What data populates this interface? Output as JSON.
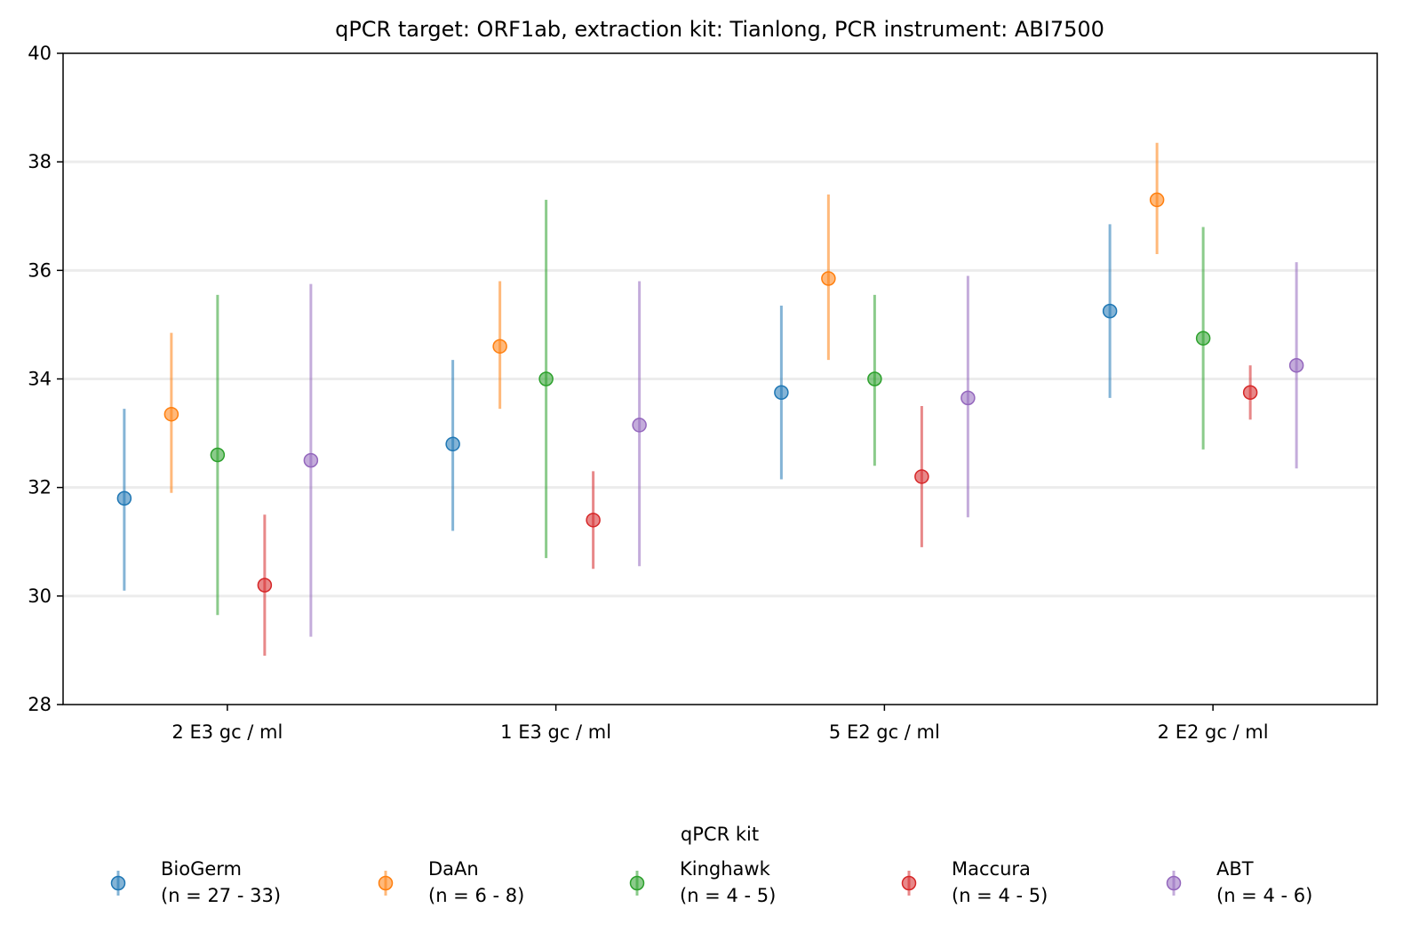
{
  "chart_data": {
    "type": "scatter",
    "subtype": "errorbar",
    "title": "qPCR target: ORF1ab, extraction kit: Tianlong, PCR instrument: ABI7500",
    "xlabel": "",
    "ylabel": "",
    "ylim": [
      28,
      40
    ],
    "yticks": [
      28,
      30,
      32,
      34,
      36,
      38,
      40
    ],
    "grid": "horizontal",
    "categories": [
      "2 E3 gc / ml",
      "1 E3 gc / ml",
      "5 E2 gc / ml",
      "2 E2 gc / ml"
    ],
    "legend": {
      "title": "qPCR kit",
      "placement": "bottom-center"
    },
    "series": [
      {
        "name": "BioGerm",
        "label": "(n = 27 - 33)",
        "color": "#1f77b4",
        "values": [
          31.8,
          32.8,
          33.75,
          35.25
        ],
        "lower": [
          30.1,
          31.2,
          32.15,
          33.65
        ],
        "upper": [
          33.45,
          34.35,
          35.35,
          36.85
        ]
      },
      {
        "name": "DaAn",
        "label": "(n = 6 - 8)",
        "color": "#ff7f0e",
        "values": [
          33.35,
          34.6,
          35.85,
          37.3
        ],
        "lower": [
          31.9,
          33.45,
          34.35,
          36.3
        ],
        "upper": [
          34.85,
          35.8,
          37.4,
          38.35
        ]
      },
      {
        "name": "Kinghawk",
        "label": "(n = 4 - 5)",
        "color": "#2ca02c",
        "values": [
          32.6,
          34.0,
          34.0,
          34.75
        ],
        "lower": [
          29.65,
          30.7,
          32.4,
          32.7
        ],
        "upper": [
          35.55,
          37.3,
          35.55,
          36.8
        ]
      },
      {
        "name": "Maccura",
        "label": "(n = 4 - 5)",
        "color": "#d62728",
        "values": [
          30.2,
          31.4,
          32.2,
          33.75
        ],
        "lower": [
          28.9,
          30.5,
          30.9,
          33.25
        ],
        "upper": [
          31.5,
          32.3,
          33.5,
          34.25
        ]
      },
      {
        "name": "ABT",
        "label": "(n = 4 - 6)",
        "color": "#9467bd",
        "values": [
          32.5,
          33.15,
          33.65,
          34.25
        ],
        "lower": [
          29.25,
          30.55,
          31.45,
          32.35
        ],
        "upper": [
          35.75,
          35.8,
          35.9,
          36.15
        ]
      }
    ]
  }
}
